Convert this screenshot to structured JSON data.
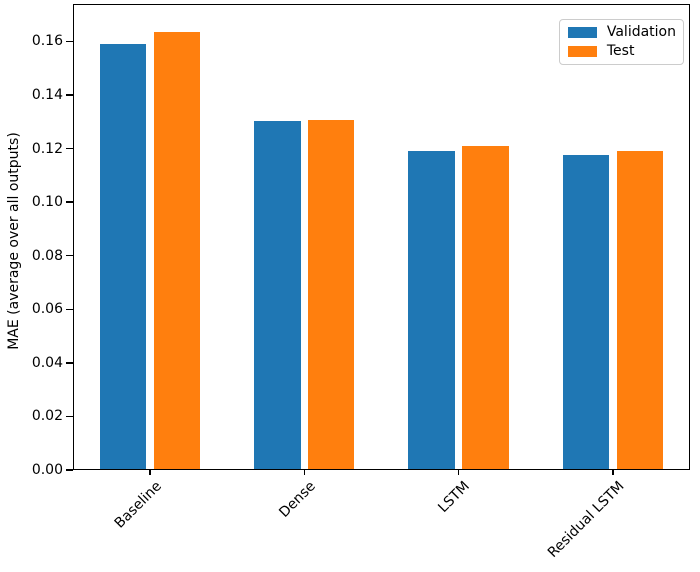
{
  "chart_data": {
    "type": "bar",
    "title": "",
    "xlabel": "",
    "ylabel": "MAE (average over all outputs)",
    "categories": [
      "Baseline",
      "Dense",
      "LSTM",
      "Residual LSTM"
    ],
    "series": [
      {
        "name": "Validation",
        "color": "#1f77b4",
        "values": [
          0.159,
          0.1305,
          0.1192,
          0.1176
        ]
      },
      {
        "name": "Test",
        "color": "#ff7f0e",
        "values": [
          0.1637,
          0.1307,
          0.1211,
          0.119
        ]
      }
    ],
    "ylim": [
      0,
      0.174
    ],
    "yticks": [
      0.0,
      0.02,
      0.04,
      0.06,
      0.08,
      0.1,
      0.12,
      0.14,
      0.16
    ],
    "ytick_labels": [
      "0.00",
      "0.02",
      "0.04",
      "0.06",
      "0.08",
      "0.10",
      "0.12",
      "0.14",
      "0.16"
    ],
    "xtick_rotation_deg": 45,
    "grid": false,
    "legend_position": "upper right",
    "bar_width_frac": 0.3,
    "bar_offset_frac": 0.175,
    "axis_color": "#000000",
    "background_color": "#ffffff",
    "legend_border_color": "#cccccc"
  }
}
